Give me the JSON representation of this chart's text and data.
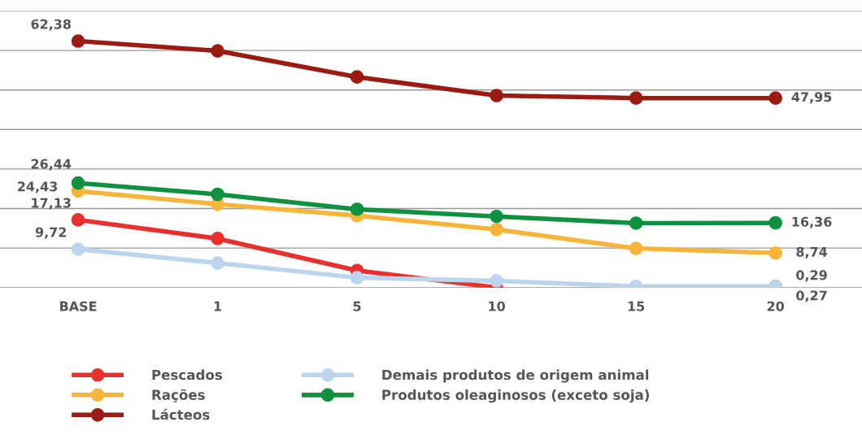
{
  "chart_data": {
    "type": "line",
    "categories": [
      "BASE",
      "1",
      "5",
      "10",
      "15",
      "20"
    ],
    "series": [
      {
        "name": "Pescados",
        "color": "#e8312f",
        "values": [
          17.13,
          12.4,
          4.3,
          0,
          null,
          0.27
        ],
        "value_labels": [
          "17,13",
          null,
          null,
          null,
          null,
          "0,27"
        ]
      },
      {
        "name": "Rações",
        "color": "#f6b53a",
        "values": [
          24.43,
          21.1,
          18.2,
          14.7,
          9.9,
          8.74
        ],
        "value_labels": [
          "24,43",
          null,
          null,
          null,
          null,
          "8,74"
        ]
      },
      {
        "name": "Lácteos",
        "color": "#9b1b13",
        "values": [
          62.38,
          59.9,
          53.3,
          48.6,
          47.95,
          47.95
        ],
        "value_labels": [
          "62,38",
          null,
          null,
          null,
          null,
          "47,95"
        ]
      },
      {
        "name": "Demais produtos de origem animal",
        "color": "#bcd5ee",
        "values": [
          9.72,
          6.2,
          2.5,
          1.7,
          0.3,
          0.29
        ],
        "value_labels": [
          "9,72",
          null,
          null,
          null,
          null,
          "0,29"
        ]
      },
      {
        "name": "Produtos oleaginosos (exceto soja)",
        "color": "#0f9140",
        "values": [
          26.44,
          23.6,
          19.8,
          18.0,
          16.3,
          16.36
        ],
        "value_labels": [
          "26,44",
          null,
          null,
          null,
          null,
          "16,36"
        ]
      }
    ],
    "ylim": [
      0,
      70
    ],
    "yticks": [
      {
        "value": 0,
        "label": null
      },
      {
        "value": 10,
        "label": null
      },
      {
        "value": 20,
        "label": null
      },
      {
        "value": 30,
        "label": null
      },
      {
        "value": 40,
        "label": null
      },
      {
        "value": 50,
        "label": null
      },
      {
        "value": 60,
        "label": null
      },
      {
        "value": 70,
        "label": null
      }
    ],
    "grid": "y",
    "legend": "bottom",
    "tick_labels": "x",
    "marker": "circle",
    "line_style": "solid"
  }
}
